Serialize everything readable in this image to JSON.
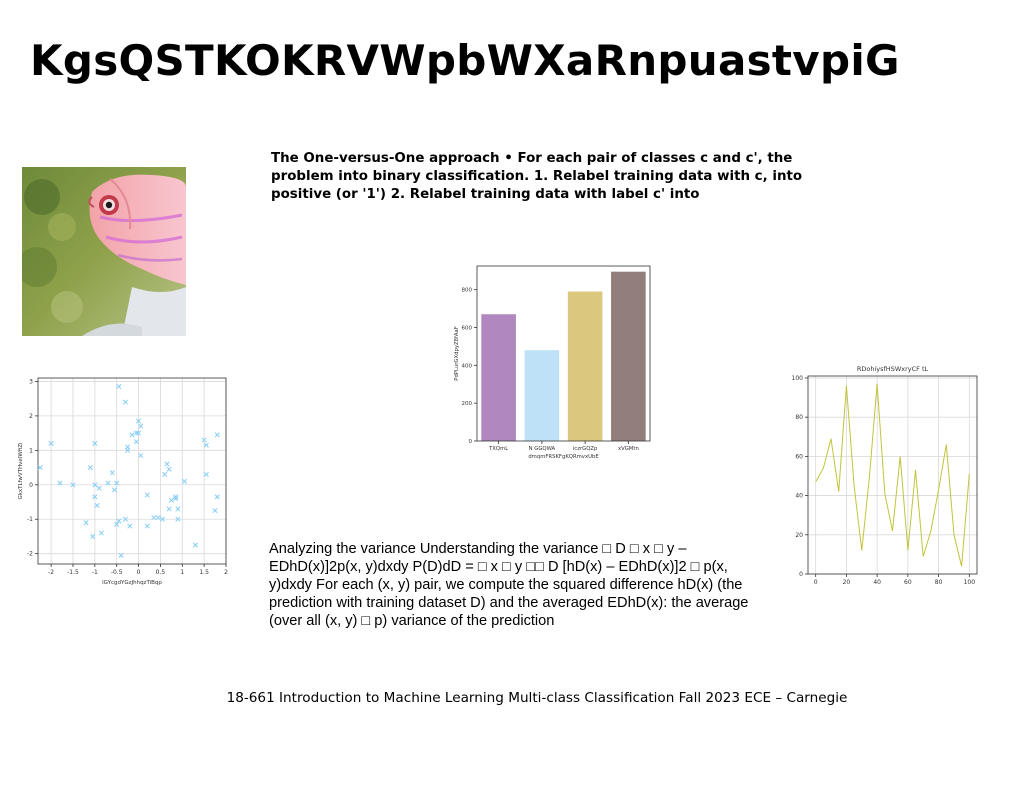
{
  "slide": {
    "title": "KgsQSTKOKRVWpbWXaRnpuastvpiG",
    "bullet_text": "The One-versus-One approach • For each pair of classes c and c', the problem into binary classification. 1. Relabel training data with c, into positive (or '1') 2. Relabel training data with label c' into",
    "body_text": "Analyzing the variance Understanding the variance □ D □ x □ y – EDhD(x)]2p(x, y)dxdy P(D)dD = □ x □ y □□ D [hD(x) – EDhD(x)]2 □ p(x, y)dxdy For each (x, y) pair, we compute the squared difference hD(x) (the prediction with training dataset D) and the averaged EDhD(x): the average (over all (x, y) □ p) variance of the prediction",
    "footer": "18-661 Introduction to Machine Learning Multi-class Classification Fall 2023 ECE – Carnegie"
  },
  "chart_data": [
    {
      "type": "scatter",
      "title": "",
      "xlabel": "lGYcgdYGzJhhqzTiBqp",
      "ylabel": "GkxTLfwVTHvelWfiZi",
      "xlim": [
        -2.3,
        2.0
      ],
      "ylim": [
        -2.3,
        3.1
      ],
      "xticks": [
        -2.0,
        -1.5,
        -1.0,
        -0.5,
        0.0,
        0.5,
        1.0,
        1.5,
        2.0
      ],
      "yticks": [
        -2,
        -1,
        0,
        1,
        2,
        3
      ],
      "grid": true,
      "marker": "x",
      "color": "#87cefa",
      "points": [
        [
          -0.45,
          2.85
        ],
        [
          -0.3,
          2.4
        ],
        [
          0.0,
          1.85
        ],
        [
          0.05,
          1.7
        ],
        [
          -0.15,
          1.45
        ],
        [
          0.0,
          1.5
        ],
        [
          -0.05,
          1.25
        ],
        [
          -0.25,
          1.1
        ],
        [
          -0.25,
          1.0
        ],
        [
          -2.0,
          1.2
        ],
        [
          -1.0,
          1.2
        ],
        [
          1.5,
          1.3
        ],
        [
          1.55,
          1.15
        ],
        [
          1.8,
          1.45
        ],
        [
          -0.05,
          1.5
        ],
        [
          -1.1,
          0.5
        ],
        [
          -0.6,
          0.35
        ],
        [
          0.65,
          0.6
        ],
        [
          0.7,
          0.45
        ],
        [
          -2.25,
          0.5
        ],
        [
          -1.8,
          0.05
        ],
        [
          -1.5,
          0.0
        ],
        [
          -1.0,
          0.0
        ],
        [
          -0.7,
          0.05
        ],
        [
          -0.5,
          0.05
        ],
        [
          0.05,
          0.85
        ],
        [
          1.55,
          0.3
        ],
        [
          1.05,
          0.1
        ],
        [
          0.6,
          0.3
        ],
        [
          -0.55,
          -0.15
        ],
        [
          -0.9,
          -0.1
        ],
        [
          -1.0,
          -0.35
        ],
        [
          0.2,
          -0.3
        ],
        [
          0.85,
          -0.35
        ],
        [
          0.75,
          -0.45
        ],
        [
          0.85,
          -0.4
        ],
        [
          1.8,
          -0.35
        ],
        [
          -0.95,
          -0.6
        ],
        [
          0.7,
          -0.7
        ],
        [
          0.9,
          -0.7
        ],
        [
          1.75,
          -0.75
        ],
        [
          0.35,
          -0.95
        ],
        [
          0.45,
          -0.95
        ],
        [
          0.55,
          -1.0
        ],
        [
          0.9,
          -1.0
        ],
        [
          -0.45,
          -1.05
        ],
        [
          -0.5,
          -1.15
        ],
        [
          -0.3,
          -1.0
        ],
        [
          -0.2,
          -1.2
        ],
        [
          0.2,
          -1.2
        ],
        [
          -1.2,
          -1.1
        ],
        [
          -1.05,
          -1.5
        ],
        [
          -0.85,
          -1.4
        ],
        [
          1.3,
          -1.75
        ],
        [
          -0.4,
          -2.05
        ]
      ]
    },
    {
      "type": "bar",
      "title": "",
      "xlabel": "dmqmFRSKFgKQRmvxUbE",
      "ylabel": "PdPLurGXdpyZ8fAaF",
      "ylim": [
        0,
        925
      ],
      "yticks": [
        0,
        200,
        400,
        600,
        800
      ],
      "categories": [
        "TXQmL",
        "N GGQWA",
        "iczrGQZp",
        "xVGMtn"
      ],
      "values": [
        670,
        480,
        790,
        895
      ],
      "colors": [
        "#b088bf",
        "#bfe1f7",
        "#dbc87d",
        "#927e7a"
      ]
    },
    {
      "type": "line",
      "title": "RDohiysfHSWxryCF tL",
      "xlabel": "",
      "ylabel": "",
      "xlim": [
        -5,
        105
      ],
      "ylim": [
        0,
        101
      ],
      "xticks": [
        0,
        20,
        40,
        60,
        80,
        100
      ],
      "yticks": [
        0,
        20,
        40,
        60,
        80,
        100
      ],
      "grid": true,
      "color": "#c2c43a",
      "x": [
        0,
        5,
        10,
        15,
        20,
        25,
        30,
        35,
        40,
        45,
        50,
        55,
        60,
        65,
        70,
        75,
        80,
        85,
        90,
        95,
        100
      ],
      "y": [
        47,
        54,
        69,
        42,
        96,
        45,
        12,
        50,
        97,
        41,
        22,
        60,
        12,
        53,
        9,
        22,
        43,
        66,
        20,
        4,
        51
      ]
    }
  ]
}
